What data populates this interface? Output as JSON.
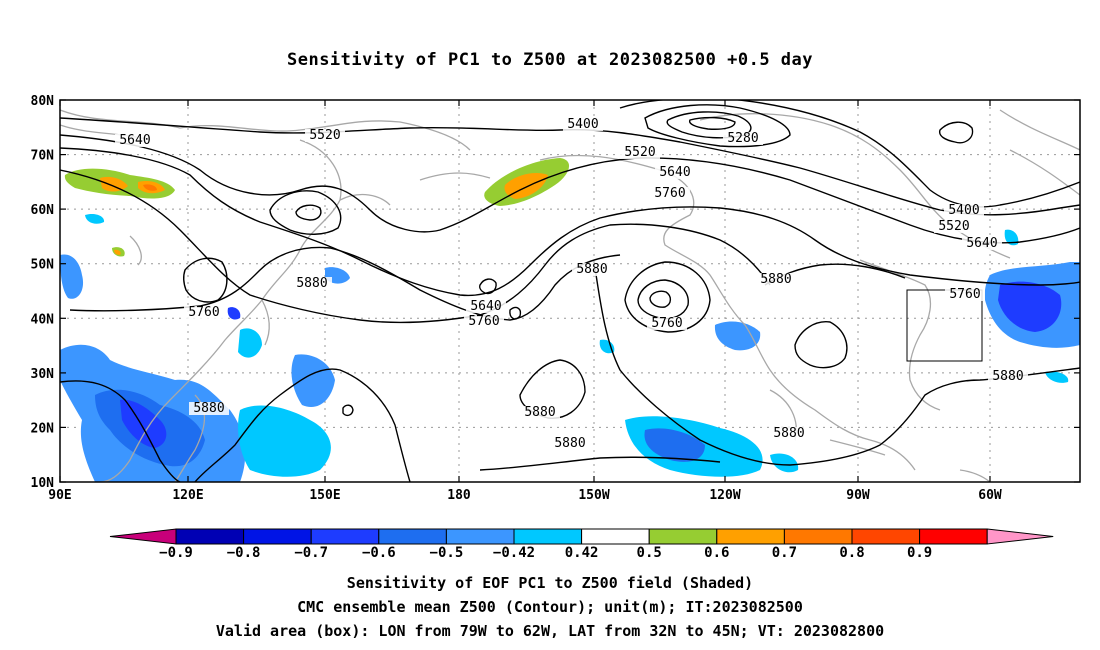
{
  "title": "Sensitivity of PC1 to Z500 at 2023082500 +0.5 day",
  "map": {
    "lat_labels": [
      "80N",
      "70N",
      "60N",
      "50N",
      "40N",
      "30N",
      "20N",
      "10N"
    ],
    "lon_labels": [
      "90E",
      "120E",
      "150E",
      "180",
      "150W",
      "120W",
      "90W",
      "60W"
    ],
    "contour_labels": [
      {
        "text": "5640"
      },
      {
        "text": "5520"
      },
      {
        "text": "5400"
      },
      {
        "text": "5280"
      },
      {
        "text": "5520"
      },
      {
        "text": "5640"
      },
      {
        "text": "5760"
      },
      {
        "text": "5400"
      },
      {
        "text": "5520"
      },
      {
        "text": "5640"
      },
      {
        "text": "5880"
      },
      {
        "text": "5880"
      },
      {
        "text": "5760"
      },
      {
        "text": "5640"
      },
      {
        "text": "5760"
      },
      {
        "text": "5760"
      },
      {
        "text": "5880"
      },
      {
        "text": "5760"
      },
      {
        "text": "5880"
      },
      {
        "text": "5880"
      },
      {
        "text": "5880"
      },
      {
        "text": "5880"
      },
      {
        "text": "5880"
      }
    ],
    "valid_box": {
      "lon_west": -79,
      "lon_east": -62,
      "lat_south": 32,
      "lat_north": 45
    }
  },
  "colorbar": {
    "tick_labels": [
      "-0.9",
      "-0.8",
      "-0.7",
      "-0.6",
      "-0.5",
      "-0.42",
      "0.42",
      "0.5",
      "0.6",
      "0.7",
      "0.8",
      "0.9"
    ],
    "colors": [
      "#c8007a",
      "#0000b4",
      "#0014e6",
      "#1e3cff",
      "#1e6ef0",
      "#3c96ff",
      "#00c8ff",
      "#ffffff",
      "#96cd32",
      "#ffa000",
      "#ff7800",
      "#ff4600",
      "#ff0000",
      "#ff96c8"
    ]
  },
  "captions": {
    "line1": "Sensitivity of EOF PC1 to Z500 field (Shaded)",
    "line2": "CMC ensemble mean Z500 (Contour); unit(m); IT:2023082500",
    "line3": "Valid area (box): LON from 79W to 62W, LAT from 32N to 45N; VT: 2023082800"
  }
}
